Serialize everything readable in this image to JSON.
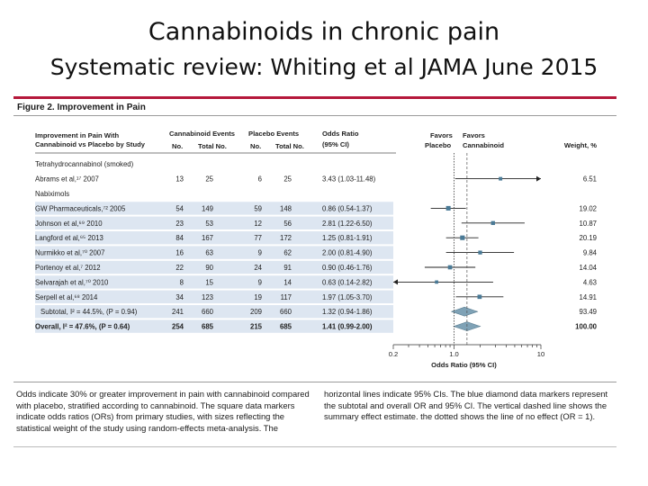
{
  "slide": {
    "title": "Cannabinoids in chronic pain",
    "subtitle": "Systematic review: Whiting et al JAMA June 2015"
  },
  "figure": {
    "label": "Figure 2. Improvement in Pain",
    "headers": {
      "study_line1": "Improvement in Pain With",
      "study_line2": "Cannabinoid vs Placebo by Study",
      "canna_events": "Cannabinoid Events",
      "placebo_events": "Placebo Events",
      "no": "No.",
      "total": "Total No.",
      "or_line1": "Odds Ratio",
      "or_line2": "(95% CI)",
      "weight": "Weight, %",
      "favors": "Favors",
      "placebo": "Placebo",
      "cannabinoid": "Cannabinoid"
    },
    "caption_left": "Odds indicate 30% or greater improvement in pain with cannabinoid compared with placebo, stratified according to cannabinoid. The square data markers indicate odds ratios (ORs) from primary studies, with sizes reflecting the statistical weight of the study using random-effects meta-analysis. The",
    "caption_right": "horizontal lines indicate 95% CIs. The blue diamond data markers represent the subtotal and overall OR and 95% CI. The vertical dashed line shows the summary effect estimate. the dotted shows the line of no effect (OR = 1)."
  },
  "colors": {
    "accent_rule": "#b5183a",
    "row_shade": "#dde6f1",
    "marker": "#4a7a96",
    "diamond": "#7fa2b6",
    "line": "#222222"
  },
  "chart_data": {
    "type": "forest",
    "title": "Improvement in Pain",
    "xlabel": "Odds Ratio (95% CI)",
    "x_scale": "log",
    "xlim": [
      0.2,
      10
    ],
    "xticks": [
      0.2,
      1.0,
      10
    ],
    "xtick_labels": [
      "0.2",
      "1.0",
      "10"
    ],
    "null_line": 1.0,
    "summary_line": 1.41,
    "rows": [
      {
        "kind": "group",
        "label": "Tetrahydrocannabinol (smoked)"
      },
      {
        "kind": "study",
        "label": "Abrams et al,¹⁷ 2007",
        "c_events": "13",
        "c_total": "25",
        "p_events": "6",
        "p_total": "25",
        "or_text": "3.43 (1.03-11.48)",
        "weight": "6.51",
        "or": 3.43,
        "lo": 1.03,
        "hi": 11.48,
        "shade": false
      },
      {
        "kind": "group",
        "label": "Nabiximols"
      },
      {
        "kind": "study",
        "label": "GW Pharmaceuticals,⁷² 2005",
        "c_events": "54",
        "c_total": "149",
        "p_events": "59",
        "p_total": "148",
        "or_text": "0.86 (0.54-1.37)",
        "weight": "19.02",
        "or": 0.86,
        "lo": 0.54,
        "hi": 1.37,
        "shade": true
      },
      {
        "kind": "study",
        "label": "Johnson et al,⁶⁹ 2010",
        "c_events": "23",
        "c_total": "53",
        "p_events": "12",
        "p_total": "56",
        "or_text": "2.81 (1.22-6.50)",
        "weight": "10.87",
        "or": 2.81,
        "lo": 1.22,
        "hi": 6.5,
        "shade": true
      },
      {
        "kind": "study",
        "label": "Langford et al,⁶⁵ 2013",
        "c_events": "84",
        "c_total": "167",
        "p_events": "77",
        "p_total": "172",
        "or_text": "1.25 (0.81-1.91)",
        "weight": "20.19",
        "or": 1.25,
        "lo": 0.81,
        "hi": 1.91,
        "shade": true
      },
      {
        "kind": "study",
        "label": "Nurmikko et al,⁷⁰ 2007",
        "c_events": "16",
        "c_total": "63",
        "p_events": "9",
        "p_total": "62",
        "or_text": "2.00 (0.81-4.90)",
        "weight": "9.84",
        "or": 2.0,
        "lo": 0.81,
        "hi": 4.9,
        "shade": true
      },
      {
        "kind": "study",
        "label": "Portenoy et al,⁦⁷ 2012",
        "c_events": "22",
        "c_total": "90",
        "p_events": "24",
        "p_total": "91",
        "or_text": "0.90 (0.46-1.76)",
        "weight": "14.04",
        "or": 0.9,
        "lo": 0.46,
        "hi": 1.76,
        "shade": true
      },
      {
        "kind": "study",
        "label": "Selvarajah et al,⁷⁰ 2010",
        "c_events": "8",
        "c_total": "15",
        "p_events": "9",
        "p_total": "14",
        "or_text": "0.63 (0.14-2.82)",
        "weight": "4.63",
        "or": 0.63,
        "lo": 0.14,
        "hi": 2.82,
        "shade": true
      },
      {
        "kind": "study",
        "label": "Serpell et al,⁶⁸ 2014",
        "c_events": "34",
        "c_total": "123",
        "p_events": "19",
        "p_total": "117",
        "or_text": "1.97 (1.05-3.70)",
        "weight": "14.91",
        "or": 1.97,
        "lo": 1.05,
        "hi": 3.7,
        "shade": true
      },
      {
        "kind": "subtotal",
        "label": "Subtotal, I² = 44.5%, (P = 0.94)",
        "c_events": "241",
        "c_total": "660",
        "p_events": "209",
        "p_total": "660",
        "or_text": "1.32 (0.94-1.86)",
        "weight": "93.49",
        "or": 1.32,
        "lo": 0.94,
        "hi": 1.86,
        "shade": true
      },
      {
        "kind": "overall",
        "label": "Overall, I² = 47.6%, (P = 0.64)",
        "c_events": "254",
        "c_total": "685",
        "p_events": "215",
        "p_total": "685",
        "or_text": "1.41 (0.99-2.00)",
        "weight": "100.00",
        "or": 1.41,
        "lo": 0.99,
        "hi": 2.0,
        "shade": true
      }
    ]
  }
}
